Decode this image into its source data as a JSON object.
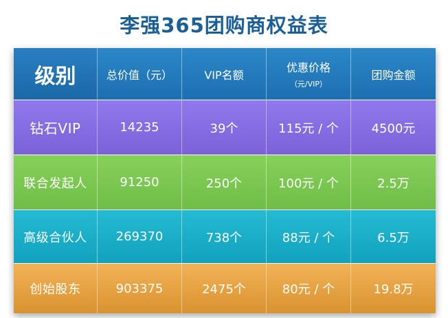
{
  "title": "李强365团购商权益表",
  "header": {
    "level": "级别",
    "total_value": "总价值（元）",
    "vip_quota": "VIP名额",
    "discount_price": "优惠价格",
    "discount_price_sub": "（元/VIP）",
    "group_amount": "团购金额"
  },
  "rows": [
    {
      "level": "钻石VIP",
      "total_value": "14235",
      "vip_quota": "39个",
      "discount_price": "115元 / 个",
      "group_amount": "4500元",
      "color": "#8a73e6"
    },
    {
      "level": "联合发起人",
      "total_value": "91250",
      "vip_quota": "250个",
      "discount_price": "100元 / 个",
      "group_amount": "2.5万",
      "color": "#7ec852"
    },
    {
      "level": "高级合伙人",
      "total_value": "269370",
      "vip_quota": "738个",
      "discount_price": "88元 / 个",
      "group_amount": "6.5万",
      "color": "#1cb0c9"
    },
    {
      "level": "创始股东",
      "total_value": "903375",
      "vip_quota": "2475个",
      "discount_price": "80元 / 个",
      "group_amount": "19.8万",
      "color": "#e8a444"
    }
  ],
  "colors": {
    "title": "#1a5f96",
    "header": "#2279ba"
  }
}
